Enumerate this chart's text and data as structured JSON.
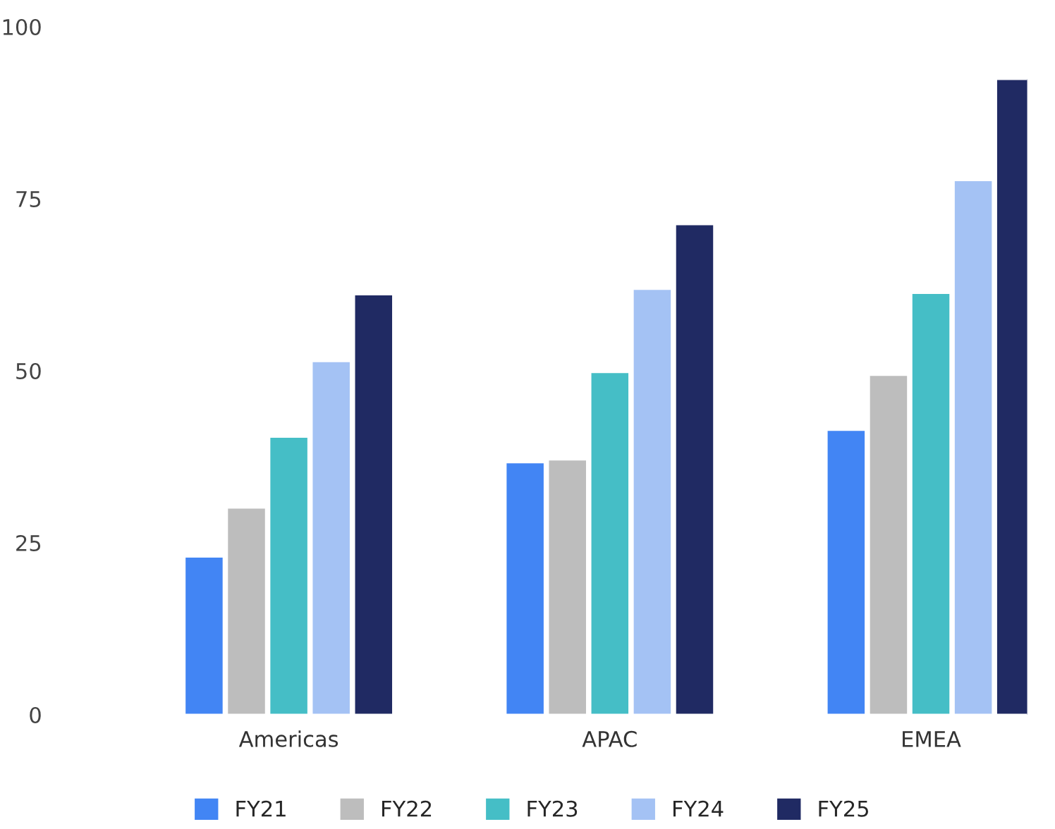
{
  "chart_data": {
    "type": "bar",
    "categories": [
      "Americas",
      "APAC",
      "EMEA"
    ],
    "series": [
      {
        "name": "FY21",
        "color": "#4285f4",
        "values": [
          23,
          36.7,
          41.4
        ]
      },
      {
        "name": "FY22",
        "color": "#bdbdbd",
        "values": [
          30.1,
          37.1,
          49.4
        ]
      },
      {
        "name": "FY23",
        "color": "#45bec6",
        "values": [
          40.4,
          49.8,
          61.3
        ]
      },
      {
        "name": "FY24",
        "color": "#a4c2f4",
        "values": [
          51.4,
          61.9,
          77.7
        ]
      },
      {
        "name": "FY25",
        "color": "#202a63",
        "values": [
          61.1,
          71.3,
          92.4
        ]
      }
    ],
    "ylim": [
      0,
      100
    ],
    "yticks": [
      0,
      25,
      50,
      75,
      100
    ],
    "grid": false,
    "legend": "bottom"
  }
}
